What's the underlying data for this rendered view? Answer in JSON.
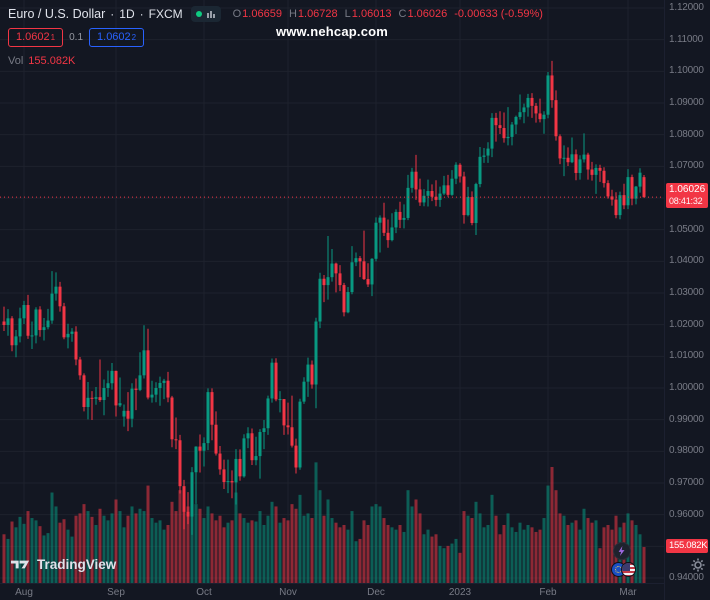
{
  "watermark": {
    "text": "www.nehcap.com"
  },
  "legend": {
    "symbol": "Euro / U.S. Dollar",
    "sep": "·",
    "interval": "1D",
    "exchange": "FXCM",
    "ohlc": {
      "o_label": "O",
      "o_value": "1.06659",
      "h_label": "H",
      "h_value": "1.06728",
      "l_label": "L",
      "l_value": "1.06013",
      "c_label": "C",
      "c_value": "1.06026",
      "change": "-0.00633 (-0.59%)"
    },
    "trade": {
      "sell_price": "1.0602",
      "sell_sup": "1",
      "spread": "0.1",
      "buy_price": "1.0602",
      "buy_sup": "2"
    },
    "vol_label": "Vol",
    "vol_value": "155.082K"
  },
  "price_label": {
    "value": "1.06026",
    "countdown": "08:41:32"
  },
  "vol_axis_label": "155.082K",
  "footer": {
    "logo": "TradingView"
  },
  "colors": {
    "bg": "#131722",
    "grid": "#1e222d",
    "up": "#089981",
    "down": "#f23645",
    "vol_up": "rgba(8,153,129,0.55)",
    "vol_down": "rgba(242,54,69,0.55)",
    "muted": "#787b86",
    "text": "#d1d4dc",
    "blue": "#2962ff"
  },
  "chart_data": {
    "type": "candlestick",
    "title": "Euro / U.S. Dollar · 1D · FXCM",
    "symbol": "EUR/USD",
    "timeframe": "1D",
    "exchange": "FXCM",
    "y_range": [
      0.94,
      1.12
    ],
    "grid": true,
    "last_price": 1.06026,
    "last_change": -0.00633,
    "last_change_pct": -0.59,
    "last_volume_k": 155.082,
    "countdown": "08:41:32",
    "price_ticks": [
      "1.12000",
      "1.11000",
      "1.10000",
      "1.09000",
      "1.08000",
      "1.07000",
      "1.06000",
      "1.05000",
      "1.04000",
      "1.03000",
      "1.02000",
      "1.01000",
      "1.00000",
      "0.99000",
      "0.98000",
      "0.97000",
      "0.96000",
      "0.95000",
      "0.94000"
    ],
    "time_ticks": [
      {
        "i": 5,
        "label": "Aug"
      },
      {
        "i": 28,
        "label": "Sep"
      },
      {
        "i": 50,
        "label": "Oct"
      },
      {
        "i": 71,
        "label": "Nov"
      },
      {
        "i": 93,
        "label": "Dec"
      },
      {
        "i": 114,
        "label": "2023"
      },
      {
        "i": 136,
        "label": "Feb"
      },
      {
        "i": 156,
        "label": "Mar"
      }
    ],
    "candle_format": [
      "open",
      "high",
      "low",
      "close",
      "volume_k"
    ],
    "candles": [
      [
        1.021,
        1.0257,
        1.018,
        1.0199,
        210
      ],
      [
        1.0199,
        1.0249,
        1.0165,
        1.022,
        190
      ],
      [
        1.022,
        1.0227,
        1.0116,
        1.0135,
        265
      ],
      [
        1.0135,
        1.0183,
        1.0097,
        1.0163,
        240
      ],
      [
        1.0163,
        1.0254,
        1.0144,
        1.022,
        285
      ],
      [
        1.022,
        1.0275,
        1.0202,
        1.0262,
        255
      ],
      [
        1.0262,
        1.0294,
        1.0155,
        1.0165,
        310
      ],
      [
        1.0165,
        1.021,
        1.0123,
        1.0166,
        280
      ],
      [
        1.0166,
        1.0255,
        1.0141,
        1.0248,
        270
      ],
      [
        1.0248,
        1.0258,
        1.0162,
        1.0183,
        245
      ],
      [
        1.0183,
        1.0221,
        1.015,
        1.0192,
        205
      ],
      [
        1.0192,
        1.025,
        1.0185,
        1.0213,
        215
      ],
      [
        1.0213,
        1.0369,
        1.0203,
        1.0298,
        390
      ],
      [
        1.0298,
        1.0365,
        1.0276,
        1.032,
        330
      ],
      [
        1.032,
        1.0335,
        1.0241,
        1.0258,
        260
      ],
      [
        1.0258,
        1.0269,
        1.0154,
        1.016,
        275
      ],
      [
        1.016,
        1.0203,
        1.0125,
        1.0171,
        230
      ],
      [
        1.0171,
        1.0189,
        1.0146,
        1.0178,
        200
      ],
      [
        1.0178,
        1.0195,
        1.0072,
        1.009,
        290
      ],
      [
        1.009,
        1.0098,
        1.0026,
        1.004,
        300
      ],
      [
        1.004,
        1.0046,
        0.9926,
        0.994,
        340
      ],
      [
        0.994,
        1.0019,
        0.9901,
        0.9969,
        310
      ],
      [
        0.9969,
        0.999,
        0.9899,
        0.9966,
        285
      ],
      [
        0.9966,
        1.0003,
        0.9947,
        0.9971,
        250
      ],
      [
        0.9971,
        1.009,
        0.9956,
        0.9962,
        320
      ],
      [
        0.9962,
        1.0027,
        0.9914,
        1.0,
        290
      ],
      [
        1.0,
        1.0055,
        0.9972,
        1.0015,
        270
      ],
      [
        1.0015,
        1.0079,
        0.9995,
        1.0054,
        300
      ],
      [
        1.0054,
        1.0055,
        0.991,
        0.9945,
        360
      ],
      [
        0.9945,
        1.0033,
        0.994,
        0.9952,
        310
      ],
      [
        0.991,
        0.9948,
        0.9878,
        0.9928,
        240
      ],
      [
        0.9928,
        0.9987,
        0.9864,
        0.9903,
        290
      ],
      [
        0.9903,
        1.0015,
        0.9876,
        0.9998,
        330
      ],
      [
        0.9998,
        1.003,
        0.993,
        0.9994,
        300
      ],
      [
        0.9994,
        1.0113,
        0.999,
        1.004,
        320
      ],
      [
        1.004,
        1.0198,
        1.003,
        1.0119,
        310
      ],
      [
        1.0119,
        1.0187,
        0.9964,
        0.997,
        420
      ],
      [
        0.997,
        1.0023,
        0.9954,
        0.9979,
        280
      ],
      [
        0.9979,
        1.0018,
        0.9955,
        1.0,
        260
      ],
      [
        1.0,
        1.0036,
        0.9944,
        1.0016,
        270
      ],
      [
        1.0016,
        1.0029,
        0.9965,
        1.0023,
        230
      ],
      [
        1.0023,
        1.0051,
        0.9955,
        0.997,
        250
      ],
      [
        0.997,
        0.9975,
        0.9813,
        0.9838,
        350
      ],
      [
        0.9838,
        0.9907,
        0.9807,
        0.9835,
        310
      ],
      [
        0.9835,
        0.9852,
        0.9667,
        0.969,
        400
      ],
      [
        0.969,
        0.971,
        0.9554,
        0.9609,
        380
      ],
      [
        0.9609,
        0.9671,
        0.957,
        0.9594,
        330
      ],
      [
        0.9594,
        0.975,
        0.9536,
        0.9734,
        410
      ],
      [
        0.9734,
        0.9816,
        0.9634,
        0.9815,
        340
      ],
      [
        0.9815,
        0.9853,
        0.9733,
        0.9802,
        320
      ],
      [
        0.9802,
        0.9844,
        0.9752,
        0.9826,
        280
      ],
      [
        0.9826,
        0.9999,
        0.9804,
        0.9987,
        330
      ],
      [
        0.9987,
        0.9999,
        0.9835,
        0.9884,
        300
      ],
      [
        0.9884,
        0.9926,
        0.9787,
        0.9793,
        270
      ],
      [
        0.9793,
        0.9817,
        0.9726,
        0.9743,
        290
      ],
      [
        0.9743,
        0.9774,
        0.9681,
        0.9703,
        240
      ],
      [
        0.9703,
        0.9774,
        0.9668,
        0.9706,
        260
      ],
      [
        0.9706,
        0.974,
        0.9652,
        0.9702,
        270
      ],
      [
        0.9702,
        0.9807,
        0.9632,
        0.9776,
        390
      ],
      [
        0.9776,
        0.9806,
        0.9707,
        0.9721,
        300
      ],
      [
        0.9721,
        0.9854,
        0.9717,
        0.9841,
        280
      ],
      [
        0.9841,
        0.9876,
        0.981,
        0.9857,
        260
      ],
      [
        0.9857,
        0.9872,
        0.9757,
        0.9772,
        270
      ],
      [
        0.9772,
        0.9846,
        0.9756,
        0.9785,
        265
      ],
      [
        0.9785,
        0.987,
        0.9714,
        0.9861,
        310
      ],
      [
        0.9861,
        0.9899,
        0.9807,
        0.9873,
        250
      ],
      [
        0.9873,
        0.9976,
        0.9852,
        0.9967,
        290
      ],
      [
        0.9967,
        1.0093,
        0.9954,
        1.008,
        350
      ],
      [
        1.008,
        1.0094,
        0.9958,
        0.9964,
        330
      ],
      [
        0.9964,
        0.999,
        0.9923,
        0.9965,
        260
      ],
      [
        0.9965,
        0.9965,
        0.9852,
        0.9882,
        280
      ],
      [
        0.9882,
        0.9954,
        0.9853,
        0.9876,
        270
      ],
      [
        0.9876,
        0.9976,
        0.9812,
        0.9818,
        340
      ],
      [
        0.9818,
        0.984,
        0.973,
        0.9749,
        320
      ],
      [
        0.9749,
        0.9966,
        0.9742,
        0.9957,
        380
      ],
      [
        0.9957,
        1.0034,
        0.995,
        1.002,
        290
      ],
      [
        1.002,
        1.0096,
        0.9972,
        1.0074,
        300
      ],
      [
        1.0074,
        1.0087,
        0.9998,
        1.0011,
        280
      ],
      [
        1.0011,
        1.0222,
        0.9936,
        1.021,
        520
      ],
      [
        1.021,
        1.0364,
        1.0189,
        1.0345,
        400
      ],
      [
        1.0345,
        1.0357,
        1.0271,
        1.0325,
        290
      ],
      [
        1.0325,
        1.048,
        1.0279,
        1.035,
        360
      ],
      [
        1.035,
        1.0439,
        1.0336,
        1.0393,
        280
      ],
      [
        1.0393,
        1.0396,
        1.0302,
        1.0362,
        260
      ],
      [
        1.0362,
        1.0388,
        1.0306,
        1.0325,
        240
      ],
      [
        1.0325,
        1.0332,
        1.0226,
        1.0239,
        250
      ],
      [
        1.0239,
        1.0319,
        1.0236,
        1.0303,
        230
      ],
      [
        1.0303,
        1.0448,
        1.0296,
        1.0397,
        310
      ],
      [
        1.0397,
        1.0428,
        1.0385,
        1.041,
        180
      ],
      [
        1.041,
        1.0417,
        1.035,
        1.04,
        190
      ],
      [
        1.04,
        1.0497,
        1.0341,
        1.0344,
        270
      ],
      [
        1.0344,
        1.0394,
        1.0319,
        1.0327,
        250
      ],
      [
        1.0327,
        1.041,
        1.029,
        1.0408,
        330
      ],
      [
        1.0408,
        1.0539,
        1.04,
        1.0522,
        340
      ],
      [
        1.0522,
        1.0545,
        1.0428,
        1.0538,
        330
      ],
      [
        1.0538,
        1.0585,
        1.048,
        1.049,
        280
      ],
      [
        1.049,
        1.0532,
        1.0443,
        1.0467,
        250
      ],
      [
        1.0467,
        1.0552,
        1.0463,
        1.0507,
        240
      ],
      [
        1.0507,
        1.0564,
        1.0489,
        1.0556,
        230
      ],
      [
        1.0556,
        1.0588,
        1.0505,
        1.0531,
        250
      ],
      [
        1.0531,
        1.058,
        1.0504,
        1.0537,
        220
      ],
      [
        1.0537,
        1.0673,
        1.053,
        1.0632,
        400
      ],
      [
        1.0632,
        1.0695,
        1.0617,
        1.0683,
        330
      ],
      [
        1.0683,
        1.0736,
        1.0594,
        1.0627,
        360
      ],
      [
        1.0627,
        1.0661,
        1.0575,
        1.0586,
        300
      ],
      [
        1.0586,
        1.0628,
        1.0574,
        1.0607,
        210
      ],
      [
        1.0607,
        1.0658,
        1.0573,
        1.0622,
        230
      ],
      [
        1.0622,
        1.0643,
        1.059,
        1.0604,
        200
      ],
      [
        1.0604,
        1.0656,
        1.0574,
        1.0594,
        210
      ],
      [
        1.0594,
        1.0636,
        1.0572,
        1.0614,
        160
      ],
      [
        1.0614,
        1.067,
        1.0609,
        1.064,
        150
      ],
      [
        1.064,
        1.0673,
        1.0604,
        1.061,
        160
      ],
      [
        1.061,
        1.0688,
        1.0607,
        1.0661,
        170
      ],
      [
        1.0661,
        1.0713,
        1.0644,
        1.0705,
        190
      ],
      [
        1.0705,
        1.071,
        1.0649,
        1.0668,
        130
      ],
      [
        1.0668,
        1.0683,
        1.0519,
        1.0546,
        310
      ],
      [
        1.0546,
        1.0635,
        1.0542,
        1.0603,
        290
      ],
      [
        1.0603,
        1.0621,
        1.0514,
        1.0521,
        280
      ],
      [
        1.0521,
        1.0648,
        1.0483,
        1.0644,
        350
      ],
      [
        1.0644,
        1.0761,
        1.0634,
        1.073,
        300
      ],
      [
        1.073,
        1.0758,
        1.0711,
        1.0734,
        240
      ],
      [
        1.0734,
        1.0776,
        1.0711,
        1.0756,
        250
      ],
      [
        1.0756,
        1.0868,
        1.0729,
        1.0853,
        380
      ],
      [
        1.0853,
        1.0869,
        1.0778,
        1.083,
        290
      ],
      [
        1.083,
        1.0874,
        1.0802,
        1.0821,
        210
      ],
      [
        1.0821,
        1.087,
        1.0775,
        1.0789,
        250
      ],
      [
        1.0789,
        1.0887,
        1.0766,
        1.0793,
        300
      ],
      [
        1.0793,
        1.084,
        1.0766,
        1.0832,
        240
      ],
      [
        1.0832,
        1.086,
        1.0802,
        1.0856,
        220
      ],
      [
        1.0856,
        1.0927,
        1.0848,
        1.0871,
        260
      ],
      [
        1.0871,
        1.0898,
        1.0836,
        1.0886,
        230
      ],
      [
        1.0886,
        1.0929,
        1.0857,
        1.0916,
        250
      ],
      [
        1.0916,
        1.0931,
        1.0853,
        1.0891,
        240
      ],
      [
        1.0891,
        1.09,
        1.0838,
        1.0867,
        220
      ],
      [
        1.0867,
        1.0914,
        1.0839,
        1.0849,
        230
      ],
      [
        1.0849,
        1.0874,
        1.0803,
        1.0863,
        280
      ],
      [
        1.0863,
        1.0998,
        1.0852,
        1.0987,
        420
      ],
      [
        1.0987,
        1.1033,
        1.0885,
        1.0909,
        500
      ],
      [
        1.0909,
        1.094,
        1.0781,
        1.0795,
        400
      ],
      [
        1.0795,
        1.0801,
        1.0707,
        1.0725,
        300
      ],
      [
        1.0725,
        1.0766,
        1.0669,
        1.0727,
        290
      ],
      [
        1.0727,
        1.076,
        1.0701,
        1.0713,
        250
      ],
      [
        1.0713,
        1.0791,
        1.071,
        1.0738,
        260
      ],
      [
        1.0738,
        1.0753,
        1.0656,
        1.0679,
        270
      ],
      [
        1.0679,
        1.0735,
        1.0658,
        1.0722,
        230
      ],
      [
        1.0722,
        1.0804,
        1.0712,
        1.0737,
        320
      ],
      [
        1.0737,
        1.0743,
        1.0658,
        1.069,
        280
      ],
      [
        1.069,
        1.0714,
        1.0655,
        1.0673,
        260
      ],
      [
        1.0673,
        1.0706,
        1.0613,
        1.0695,
        270
      ],
      [
        1.0695,
        1.0705,
        1.0651,
        1.0686,
        150
      ],
      [
        1.0686,
        1.0697,
        1.0633,
        1.0647,
        240
      ],
      [
        1.0647,
        1.0656,
        1.0598,
        1.0605,
        250
      ],
      [
        1.0605,
        1.0626,
        1.0576,
        1.0595,
        230
      ],
      [
        1.0595,
        1.0618,
        1.0536,
        1.0546,
        290
      ],
      [
        1.0546,
        1.062,
        1.0533,
        1.0609,
        240
      ],
      [
        1.0609,
        1.0645,
        1.0565,
        1.0577,
        260
      ],
      [
        1.0577,
        1.0691,
        1.0565,
        1.0666,
        300
      ],
      [
        1.0666,
        1.0674,
        1.0577,
        1.0598,
        270
      ],
      [
        1.0598,
        1.0638,
        1.058,
        1.0636,
        250
      ],
      [
        1.0636,
        1.0694,
        1.0617,
        1.068,
        210
      ],
      [
        1.06659,
        1.06728,
        1.06013,
        1.06026,
        155.082
      ]
    ]
  }
}
